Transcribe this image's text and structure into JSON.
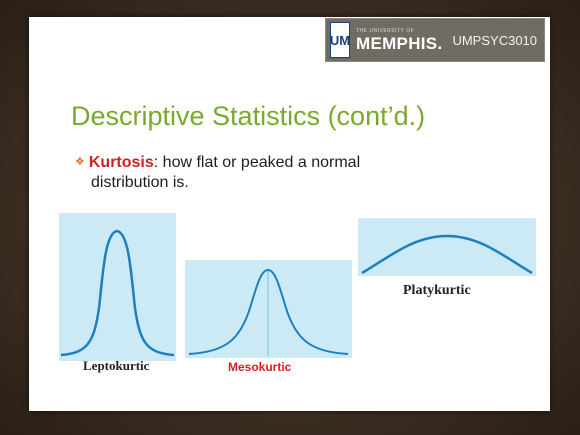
{
  "header": {
    "logo_mark": "UM",
    "logo_top": "THE UNIVERSITY OF",
    "logo_name": "MEMPHIS.",
    "course_code": "UMPSYC3010"
  },
  "slide": {
    "title": "Descriptive Statistics (cont’d.)",
    "bullet_term": "Kurtosis",
    "bullet_text_1": ": how flat or peaked a normal",
    "bullet_text_2": "distribution is."
  },
  "figures": {
    "leptokurtic_label": "Leptokurtic",
    "mesokurtic_label": "Mesokurtic",
    "platykurtic_label": "Platykurtic"
  },
  "colors": {
    "title": "#7aaa2c",
    "term": "#d61e1e",
    "curve": "#1b7fc2",
    "panel": "#cbeaf6"
  }
}
